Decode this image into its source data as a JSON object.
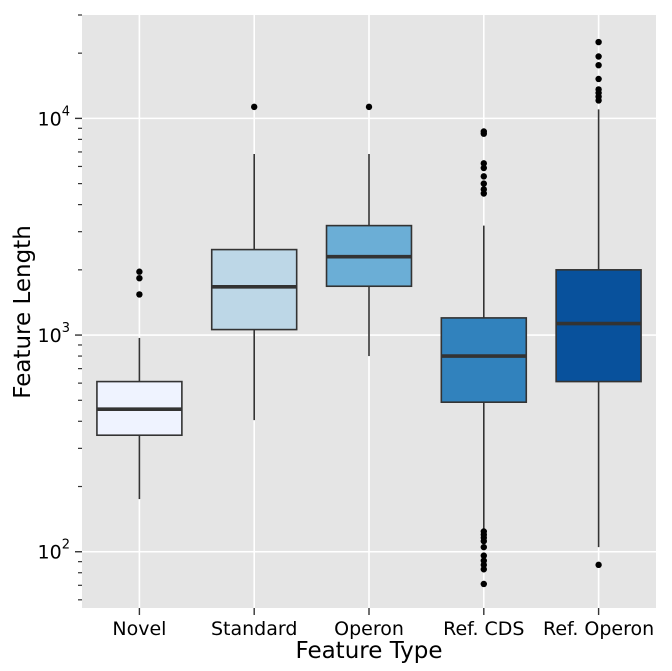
{
  "chart_data": {
    "type": "boxplot",
    "xlabel": "Feature Type",
    "ylabel": "Feature Length",
    "y_scale": "log10",
    "ylim": [
      55,
      30000
    ],
    "y_ticks": [
      {
        "value": 100,
        "base": "10",
        "exp": "2"
      },
      {
        "value": 1000,
        "base": "10",
        "exp": "3"
      },
      {
        "value": 10000,
        "base": "10",
        "exp": "4"
      }
    ],
    "grid": true,
    "legend": "none",
    "categories": [
      "Novel",
      "Standard",
      "Operon",
      "Ref. CDS",
      "Ref. Operon"
    ],
    "series": [
      {
        "color": "#eff3ff",
        "whisker_low": 175,
        "q1": 345,
        "median": 455,
        "q3": 610,
        "whisker_high": 970,
        "outliers": [
          1540,
          1830,
          1960
        ]
      },
      {
        "color": "#bdd7e7",
        "whisker_low": 405,
        "q1": 1060,
        "median": 1670,
        "q3": 2480,
        "whisker_high": 6850,
        "outliers": [
          11300
        ]
      },
      {
        "color": "#6baed6",
        "whisker_low": 800,
        "q1": 1680,
        "median": 2300,
        "q3": 3200,
        "whisker_high": 6850,
        "outliers": [
          11300
        ]
      },
      {
        "color": "#3182bd",
        "whisker_low": 128,
        "q1": 490,
        "median": 800,
        "q3": 1200,
        "whisker_high": 3200,
        "outliers": [
          71,
          83,
          87,
          91,
          96,
          105,
          112,
          116,
          120,
          124,
          4500,
          4700,
          5000,
          5400,
          5900,
          6200,
          8500,
          8700
        ]
      },
      {
        "color": "#08519c",
        "whisker_low": 105,
        "q1": 610,
        "median": 1130,
        "q3": 2000,
        "whisker_high": 11000,
        "outliers": [
          87,
          12100,
          12600,
          13100,
          13600,
          15200,
          17600,
          19300,
          22500
        ]
      }
    ]
  }
}
